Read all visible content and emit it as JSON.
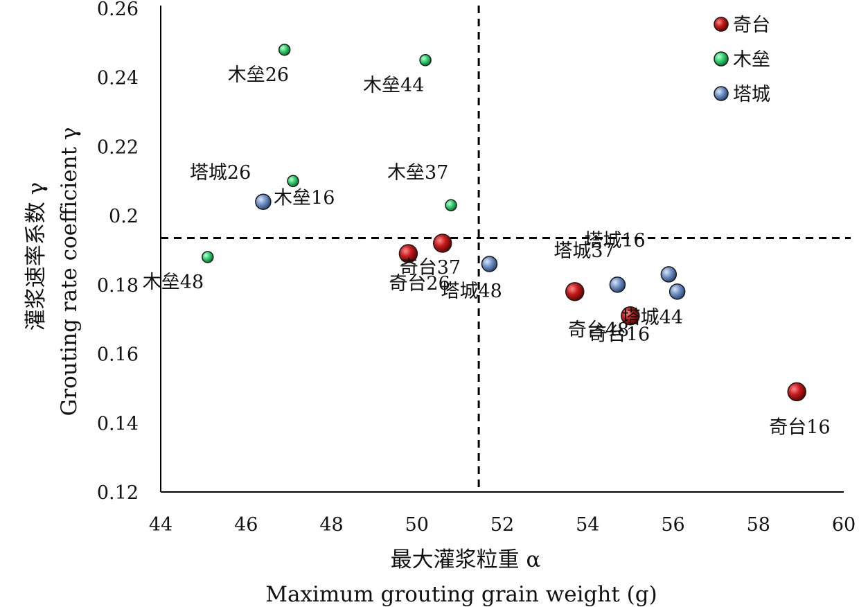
{
  "chart_data": {
    "type": "scatter",
    "xlabel_cn": "最大灌浆粒重 α",
    "xlabel_en": "Maximum grouting grain weight (g)",
    "ylabel_cn": "灌浆速率系数 γ",
    "ylabel_en": "Grouting rate coefficient γ",
    "xlim": [
      44,
      60
    ],
    "ylim": [
      0.12,
      0.26
    ],
    "xticks": [
      "44",
      "46",
      "48",
      "50",
      "52",
      "54",
      "56",
      "58",
      "60"
    ],
    "yticks": [
      "0.12",
      "0.14",
      "0.16",
      "0.18",
      "0.2",
      "0.22",
      "0.24",
      "0.26"
    ],
    "reference_lines": {
      "x": 51.45,
      "y": 0.1935
    },
    "legend_position": "top-right",
    "series": [
      {
        "name": "奇台",
        "color": "#b01818",
        "points": [
          {
            "label": "奇台16",
            "x": 58.9,
            "y": 0.149
          },
          {
            "label": "奇台26",
            "x": 49.8,
            "y": 0.189
          },
          {
            "label": "奇台37",
            "x": 50.6,
            "y": 0.192
          },
          {
            "label": "奇台48",
            "x": 53.7,
            "y": 0.178
          },
          {
            "label": "奇台16",
            "x": 55.0,
            "y": 0.171
          }
        ]
      },
      {
        "name": "木垒",
        "color": "#2fcf6f",
        "points": [
          {
            "label": "木垒26",
            "x": 46.9,
            "y": 0.248
          },
          {
            "label": "木垒44",
            "x": 50.2,
            "y": 0.245
          },
          {
            "label": "木垒16",
            "x": 47.1,
            "y": 0.21
          },
          {
            "label": "木垒37",
            "x": 50.8,
            "y": 0.203
          },
          {
            "label": "木垒48",
            "x": 45.1,
            "y": 0.188
          }
        ]
      },
      {
        "name": "塔城",
        "color": "#6f8fc2",
        "points": [
          {
            "label": "塔城26",
            "x": 46.4,
            "y": 0.204
          },
          {
            "label": "塔城48",
            "x": 51.7,
            "y": 0.186
          },
          {
            "label": "塔城37",
            "x": 54.7,
            "y": 0.18
          },
          {
            "label": "塔城16",
            "x": 55.9,
            "y": 0.183
          },
          {
            "label": "塔城44",
            "x": 56.1,
            "y": 0.178
          }
        ]
      }
    ]
  }
}
